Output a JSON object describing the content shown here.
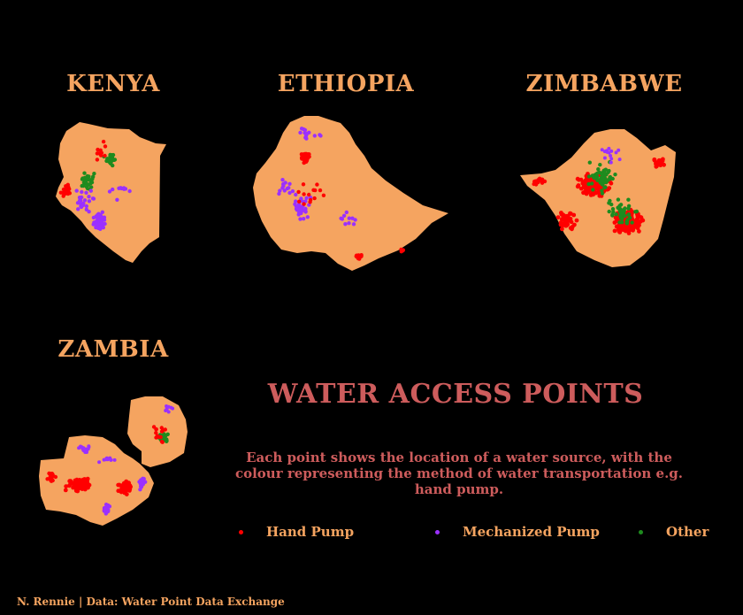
{
  "colors": {
    "background": "#000000",
    "land": "#F5A460",
    "title": "#CD5C5C",
    "hand_pump": "#FF0000",
    "mechanized_pump": "#9B30FF",
    "other": "#1E8B1E"
  },
  "titles": {
    "kenya": "KENYA",
    "ethiopia": "ETHIOPIA",
    "zimbabwe": "ZIMBABWE",
    "zambia": "ZAMBIA"
  },
  "main_title": "WATER ACCESS POINTS",
  "subtitle": "Each point shows the location of a water source, with the colour representing the method of water transportation e.g. hand pump.",
  "legend": {
    "items": [
      {
        "label": "Hand Pump",
        "color": "#FF0000"
      },
      {
        "label": "Mechanized Pump",
        "color": "#9B30FF"
      },
      {
        "label": "Other",
        "color": "#1E8B1E"
      }
    ]
  },
  "caption": "N. Rennie | Data: Water Point Data Exchange"
}
